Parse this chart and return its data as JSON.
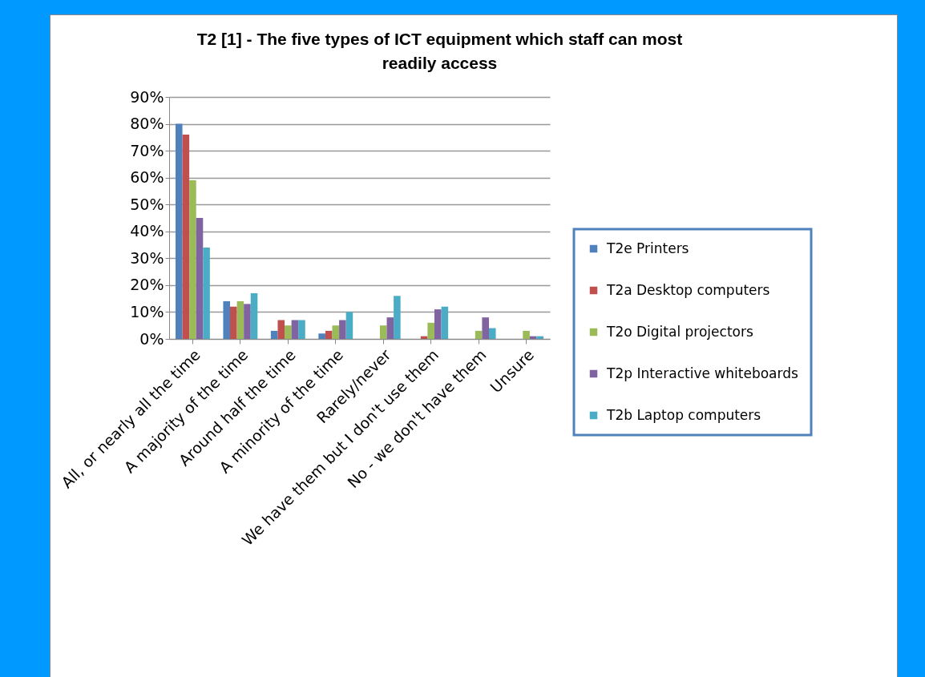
{
  "chart_data": {
    "type": "bar",
    "title": "T2 [1] - The five types of ICT equipment which staff can most readily access",
    "categories": [
      "All, or nearly all the time",
      "A majority of the time",
      "Around half the time",
      "A minority of the time",
      "Rarely/never",
      "We have them but I don't use them",
      "No - we don't have them",
      "Unsure"
    ],
    "series": [
      {
        "name": "T2e Printers",
        "color": "#4f81bd",
        "values": [
          80,
          14,
          3,
          2,
          0,
          0,
          0,
          0
        ]
      },
      {
        "name": "T2a Desktop computers",
        "color": "#c0504d",
        "values": [
          76,
          12,
          7,
          3,
          0,
          1,
          0,
          0
        ]
      },
      {
        "name": "T2o Digital projectors",
        "color": "#9bbb59",
        "values": [
          59,
          14,
          5,
          5,
          5,
          6,
          3,
          3
        ]
      },
      {
        "name": "T2p Interactive whiteboards",
        "color": "#8064a2",
        "values": [
          45,
          13,
          7,
          7,
          8,
          11,
          8,
          1
        ]
      },
      {
        "name": "T2b Laptop computers",
        "color": "#4bacc6",
        "values": [
          34,
          17,
          7,
          10,
          16,
          12,
          4,
          1
        ]
      }
    ],
    "ylim": [
      0,
      90
    ],
    "yticks": [
      {
        "value": 0,
        "label": "0%"
      },
      {
        "value": 10,
        "label": "10%"
      },
      {
        "value": 20,
        "label": "20%"
      },
      {
        "value": 30,
        "label": "30%"
      },
      {
        "value": 40,
        "label": "40%"
      },
      {
        "value": 50,
        "label": "50%"
      },
      {
        "value": 60,
        "label": "60%"
      },
      {
        "value": 70,
        "label": "70%"
      },
      {
        "value": 80,
        "label": "80%"
      },
      {
        "value": 90,
        "label": "90%"
      }
    ],
    "grid": "y",
    "legend": "right"
  }
}
